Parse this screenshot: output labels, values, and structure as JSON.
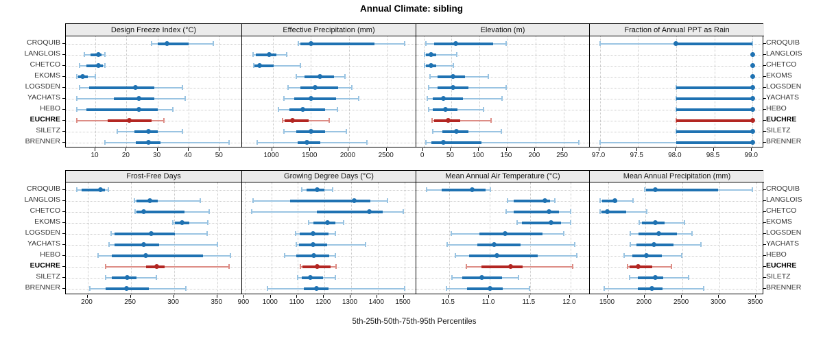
{
  "title": "Annual Climate: sibling",
  "footer": "5th-25th-50th-75th-95th Percentiles",
  "colors": {
    "series_dark": "#1f72b2",
    "series_light": "#9ac4e2",
    "highlight_dark": "#b32622",
    "highlight_light": "#dd8d86",
    "strip_bg": "#ebebeb",
    "grid_dotted": "#c8c8c8",
    "panel_border": "#000000"
  },
  "chart_data": {
    "type": "dotplot",
    "title": "Annual Climate: sibling",
    "xlabel": "5th-25th-50th-75th-95th Percentiles",
    "percentile_labels": [
      "5th",
      "25th",
      "50th",
      "75th",
      "95th"
    ],
    "layout": "2x4",
    "grid": "dotted",
    "stations": [
      "CROQUIB",
      "LANGLOIS",
      "CHETCO",
      "EKOMS",
      "LOGSDEN",
      "YACHATS",
      "HEBO",
      "EUCHRE",
      "SILETZ",
      "BRENNER"
    ],
    "highlight_station": "EUCHRE",
    "panels": [
      {
        "title": "Design Freeze Index (°C)",
        "xlim": [
          0.5,
          57
        ],
        "ticks": [
          10,
          20,
          30,
          40,
          50
        ],
        "tick_labels": [
          "10",
          "20",
          "30",
          "40",
          "50"
        ],
        "values": [
          [
            28,
            30,
            33,
            40,
            48
          ],
          [
            6.5,
            8.5,
            11,
            12,
            13
          ],
          [
            5,
            7,
            11,
            12.5,
            13
          ],
          [
            4,
            4.5,
            6,
            7.5,
            10
          ],
          [
            5,
            8,
            23,
            29,
            38
          ],
          [
            4,
            16,
            24,
            29,
            39
          ],
          [
            4,
            7,
            24,
            30,
            35
          ],
          [
            4,
            14,
            21,
            28,
            32
          ],
          [
            17,
            22.5,
            27,
            30,
            38
          ],
          [
            13,
            23,
            27,
            31,
            53
          ]
        ]
      },
      {
        "title": "Effective Precipitation (mm)",
        "xlim": [
          600,
          2880
        ],
        "ticks": [
          1000,
          1500,
          2000,
          2500
        ],
        "tick_labels": [
          "1000",
          "1500",
          "2000",
          "2500"
        ],
        "values": [
          [
            1340,
            1365,
            1500,
            2330,
            2730
          ],
          [
            740,
            780,
            950,
            1045,
            1180
          ],
          [
            750,
            765,
            830,
            1010,
            1365
          ],
          [
            1310,
            1420,
            1620,
            1800,
            1950
          ],
          [
            1200,
            1360,
            1560,
            1860,
            2040
          ],
          [
            1150,
            1280,
            1500,
            1830,
            2130
          ],
          [
            1075,
            1220,
            1390,
            1690,
            1850
          ],
          [
            1130,
            1160,
            1260,
            1475,
            1740
          ],
          [
            1150,
            1310,
            1505,
            1685,
            1965
          ],
          [
            800,
            1330,
            1445,
            1620,
            2230
          ]
        ]
      },
      {
        "title": "Elevation (m)",
        "xlim": [
          -13,
          297
        ],
        "ticks": [
          0,
          50,
          100,
          150,
          200,
          250
        ],
        "tick_labels": [
          "0",
          "50",
          "100",
          "150",
          "200",
          "250"
        ],
        "values": [
          [
            4,
            19,
            57,
            124,
            148
          ],
          [
            2,
            4,
            13,
            22,
            59
          ],
          [
            2,
            4,
            13,
            22,
            53
          ],
          [
            12,
            25,
            53,
            74,
            116
          ],
          [
            9,
            25,
            53,
            80,
            148
          ],
          [
            7,
            16,
            35,
            70,
            140
          ],
          [
            9,
            16,
            39,
            61,
            107
          ],
          [
            15,
            19,
            44,
            66,
            120
          ],
          [
            16,
            34,
            59,
            80,
            139
          ],
          [
            4,
            14,
            35,
            103,
            277
          ]
        ]
      },
      {
        "title": "Fraction of Annual PPT as Rain",
        "xlim": [
          96.87,
          99.16
        ],
        "ticks": [
          97.0,
          97.5,
          98.0,
          98.5,
          99.0
        ],
        "tick_labels": [
          "97.0",
          "97.5",
          "98.0",
          "98.5",
          "99.0"
        ],
        "values": [
          [
            97,
            98,
            98,
            99,
            99
          ],
          [
            99,
            99,
            99,
            99,
            99
          ],
          [
            99,
            99,
            99,
            99,
            99
          ],
          [
            99,
            99,
            99,
            99,
            99
          ],
          [
            98,
            98,
            99,
            99,
            99
          ],
          [
            98,
            98,
            99,
            99,
            99
          ],
          [
            98,
            98,
            99,
            99,
            99
          ],
          [
            98,
            98,
            99,
            99,
            99
          ],
          [
            98,
            98,
            99,
            99,
            99
          ],
          [
            97,
            98,
            99,
            99,
            99
          ]
        ]
      },
      {
        "title": "Frost-Free Days",
        "xlim": [
          175,
          378
        ],
        "ticks": [
          200,
          250,
          300,
          350
        ],
        "tick_labels": [
          "200",
          "250",
          "300",
          "350"
        ],
        "values": [
          [
            188,
            193,
            215,
            220,
            224
          ],
          [
            254,
            257,
            272,
            281,
            330
          ],
          [
            255,
            257,
            265,
            312,
            341
          ],
          [
            299,
            301,
            309,
            318,
            339
          ],
          [
            227,
            231,
            274,
            301,
            338
          ],
          [
            225,
            231,
            265,
            283,
            350
          ],
          [
            212,
            228,
            267,
            334,
            365
          ],
          [
            221,
            268,
            280,
            289,
            364
          ],
          [
            221,
            228,
            246,
            257,
            280
          ],
          [
            203,
            221,
            245,
            271,
            314
          ]
        ]
      },
      {
        "title": "Growing Degree Days (°C)",
        "xlim": [
          890,
          1545
        ],
        "ticks": [
          900,
          1000,
          1100,
          1200,
          1300,
          1400,
          1500
        ],
        "tick_labels": [
          "900",
          "1000",
          "1100",
          "1200",
          "1300",
          "1400",
          "1500"
        ],
        "values": [
          [
            1113,
            1132,
            1172,
            1200,
            1231
          ],
          [
            930,
            1070,
            1312,
            1372,
            1437
          ],
          [
            925,
            1170,
            1368,
            1420,
            1495
          ],
          [
            1140,
            1158,
            1212,
            1240,
            1271
          ],
          [
            1090,
            1106,
            1156,
            1214,
            1240
          ],
          [
            1093,
            1104,
            1158,
            1209,
            1355
          ],
          [
            1050,
            1093,
            1160,
            1218,
            1240
          ],
          [
            1108,
            1117,
            1171,
            1222,
            1242
          ],
          [
            1099,
            1113,
            1147,
            1194,
            1240
          ],
          [
            986,
            1123,
            1169,
            1216,
            1500
          ]
        ]
      },
      {
        "title": "Mean Annual Air Temperature (°C)",
        "xlim": [
          10.09,
          12.24
        ],
        "ticks": [
          10.5,
          11.0,
          11.5,
          12.0
        ],
        "tick_labels": [
          "10.5",
          "11.0",
          "11.5",
          "12.0"
        ],
        "values": [
          [
            10.22,
            10.4,
            10.78,
            10.95,
            11.01
          ],
          [
            11.22,
            11.3,
            11.68,
            11.75,
            11.81
          ],
          [
            11.2,
            11.3,
            11.73,
            11.86,
            12.0
          ],
          [
            11.34,
            11.4,
            11.76,
            11.88,
            12.0
          ],
          [
            10.52,
            10.87,
            11.19,
            11.65,
            11.92
          ],
          [
            10.47,
            10.85,
            11.05,
            11.38,
            12.05
          ],
          [
            10.57,
            10.74,
            11.09,
            11.59,
            12.08
          ],
          [
            10.71,
            10.9,
            11.26,
            11.41,
            12.03
          ],
          [
            10.53,
            10.66,
            10.9,
            11.15,
            11.36
          ],
          [
            10.46,
            10.72,
            11.0,
            11.16,
            11.49
          ]
        ]
      },
      {
        "title": "Mean Annual Precipitation (mm)",
        "xlim": [
          1250,
          3610
        ],
        "ticks": [
          1500,
          2000,
          2500,
          3000,
          3500
        ],
        "tick_labels": [
          "1500",
          "2000",
          "2500",
          "3000",
          "3500"
        ],
        "values": [
          [
            1990,
            2010,
            2130,
            2980,
            3440
          ],
          [
            1385,
            1415,
            1590,
            1625,
            1830
          ],
          [
            1390,
            1410,
            1485,
            1745,
            2015
          ],
          [
            1915,
            1955,
            2130,
            2260,
            2530
          ],
          [
            1800,
            1910,
            2180,
            2425,
            2625
          ],
          [
            1795,
            1875,
            2115,
            2380,
            2750
          ],
          [
            1715,
            1825,
            2015,
            2220,
            2490
          ],
          [
            1760,
            1785,
            1905,
            2095,
            2355
          ],
          [
            1785,
            1895,
            2130,
            2240,
            2585
          ],
          [
            1440,
            1900,
            2090,
            2230,
            2790
          ]
        ]
      }
    ]
  }
}
